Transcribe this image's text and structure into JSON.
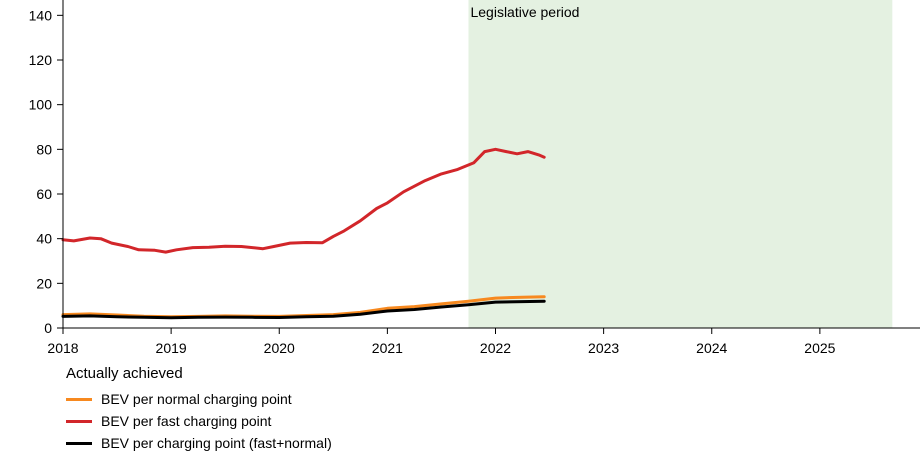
{
  "chart_data": {
    "type": "line",
    "xlim": [
      2018,
      2026
    ],
    "ylim": [
      0,
      150
    ],
    "x_ticks": [
      2018,
      2019,
      2020,
      2021,
      2022,
      2023,
      2024,
      2025
    ],
    "x_tick_labels": [
      "2018",
      "2019",
      "2020",
      "2021",
      "2022",
      "2023",
      "2024",
      "2025"
    ],
    "y_ticks": [
      0,
      20,
      40,
      60,
      80,
      100,
      120,
      140
    ],
    "y_tick_labels": [
      "0",
      "20",
      "40",
      "60",
      "80",
      "100",
      "120",
      "140"
    ],
    "grid": false,
    "shaded_region": {
      "label": "Legislative period",
      "x_start": 2021.75,
      "x_end": 2025.67,
      "color": "#e4f1e1"
    },
    "legend": {
      "title": "Actually achieved",
      "placement": "bottom-left"
    },
    "series": [
      {
        "name": "BEV per normal charging point",
        "color": "#f7891f",
        "x": [
          2018.0,
          2018.25,
          2018.5,
          2018.75,
          2019.0,
          2019.25,
          2019.5,
          2019.75,
          2020.0,
          2020.25,
          2020.5,
          2020.75,
          2021.0,
          2021.25,
          2021.5,
          2021.75,
          2022.0,
          2022.25,
          2022.45
        ],
        "y": [
          6,
          6.3,
          5.8,
          5.3,
          5.0,
          5.2,
          5.4,
          5.3,
          5.2,
          5.6,
          6.0,
          7.0,
          8.8,
          9.6,
          10.8,
          12.0,
          13.4,
          13.8,
          14.0
        ]
      },
      {
        "name": "BEV per fast charging point",
        "color": "#d2262a",
        "x": [
          2018.0,
          2018.1,
          2018.25,
          2018.35,
          2018.45,
          2018.6,
          2018.7,
          2018.85,
          2018.95,
          2019.05,
          2019.2,
          2019.35,
          2019.5,
          2019.65,
          2019.85,
          2019.95,
          2020.1,
          2020.25,
          2020.4,
          2020.5,
          2020.6,
          2020.75,
          2020.9,
          2021.0,
          2021.15,
          2021.35,
          2021.5,
          2021.65,
          2021.8,
          2021.9,
          2022.0,
          2022.1,
          2022.2,
          2022.3,
          2022.4,
          2022.45
        ],
        "y": [
          39.5,
          39.0,
          40.3,
          40.0,
          38.0,
          36.5,
          35.0,
          34.8,
          34.0,
          35.0,
          36.0,
          36.2,
          36.6,
          36.5,
          35.5,
          36.5,
          38.0,
          38.3,
          38.2,
          41.0,
          43.5,
          48.0,
          53.5,
          56.0,
          61.0,
          66.0,
          69.0,
          71.0,
          74.0,
          79.0,
          80.0,
          79.0,
          78.0,
          79.0,
          77.5,
          76.5
        ]
      },
      {
        "name": "BEV per charging point (fast+normal)",
        "color": "#000000",
        "x": [
          2018.0,
          2018.25,
          2018.5,
          2018.75,
          2019.0,
          2019.25,
          2019.5,
          2019.75,
          2020.0,
          2020.25,
          2020.5,
          2020.75,
          2021.0,
          2021.25,
          2021.5,
          2021.75,
          2022.0,
          2022.25,
          2022.45
        ],
        "y": [
          5.2,
          5.4,
          5.0,
          4.8,
          4.6,
          4.8,
          4.9,
          4.8,
          4.7,
          5.0,
          5.3,
          6.2,
          7.6,
          8.3,
          9.4,
          10.4,
          11.6,
          11.8,
          12.0
        ]
      }
    ]
  }
}
